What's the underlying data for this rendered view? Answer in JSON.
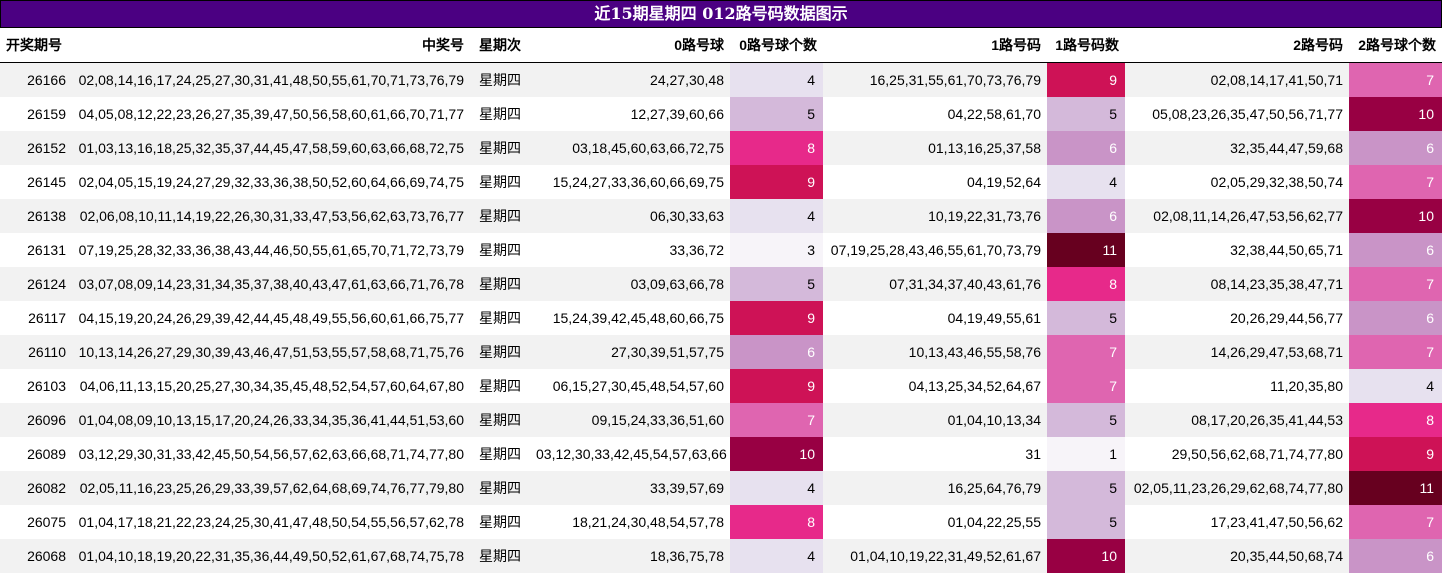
{
  "title": "近15期星期四 012路号码数据图示",
  "headers": [
    "开奖期号",
    "中奖号",
    "星期次",
    "0路号球",
    "0路号球个数",
    "1路号码",
    "1路号码数",
    "2路号码",
    "2路号球个数"
  ],
  "rows": [
    {
      "issue": "26166",
      "numbers": "02,08,14,16,17,24,25,27,30,31,41,48,50,55,61,70,71,73,76,79",
      "weekday": "星期四",
      "r0": "24,27,30,48",
      "c0": 4,
      "r1": "16,25,31,55,61,70,73,76,79",
      "c1": 9,
      "r2": "02,08,14,17,41,50,71",
      "c2": 7
    },
    {
      "issue": "26159",
      "numbers": "04,05,08,12,22,23,26,27,35,39,47,50,56,58,60,61,66,70,71,77",
      "weekday": "星期四",
      "r0": "12,27,39,60,66",
      "c0": 5,
      "r1": "04,22,58,61,70",
      "c1": 5,
      "r2": "05,08,23,26,35,47,50,56,71,77",
      "c2": 10
    },
    {
      "issue": "26152",
      "numbers": "01,03,13,16,18,25,32,35,37,44,45,47,58,59,60,63,66,68,72,75",
      "weekday": "星期四",
      "r0": "03,18,45,60,63,66,72,75",
      "c0": 8,
      "r1": "01,13,16,25,37,58",
      "c1": 6,
      "r2": "32,35,44,47,59,68",
      "c2": 6
    },
    {
      "issue": "26145",
      "numbers": "02,04,05,15,19,24,27,29,32,33,36,38,50,52,60,64,66,69,74,75",
      "weekday": "星期四",
      "r0": "15,24,27,33,36,60,66,69,75",
      "c0": 9,
      "r1": "04,19,52,64",
      "c1": 4,
      "r2": "02,05,29,32,38,50,74",
      "c2": 7
    },
    {
      "issue": "26138",
      "numbers": "02,06,08,10,11,14,19,22,26,30,31,33,47,53,56,62,63,73,76,77",
      "weekday": "星期四",
      "r0": "06,30,33,63",
      "c0": 4,
      "r1": "10,19,22,31,73,76",
      "c1": 6,
      "r2": "02,08,11,14,26,47,53,56,62,77",
      "c2": 10
    },
    {
      "issue": "26131",
      "numbers": "07,19,25,28,32,33,36,38,43,44,46,50,55,61,65,70,71,72,73,79",
      "weekday": "星期四",
      "r0": "33,36,72",
      "c0": 3,
      "r1": "07,19,25,28,43,46,55,61,70,73,79",
      "c1": 11,
      "r2": "32,38,44,50,65,71",
      "c2": 6
    },
    {
      "issue": "26124",
      "numbers": "03,07,08,09,14,23,31,34,35,37,38,40,43,47,61,63,66,71,76,78",
      "weekday": "星期四",
      "r0": "03,09,63,66,78",
      "c0": 5,
      "r1": "07,31,34,37,40,43,61,76",
      "c1": 8,
      "r2": "08,14,23,35,38,47,71",
      "c2": 7
    },
    {
      "issue": "26117",
      "numbers": "04,15,19,20,24,26,29,39,42,44,45,48,49,55,56,60,61,66,75,77",
      "weekday": "星期四",
      "r0": "15,24,39,42,45,48,60,66,75",
      "c0": 9,
      "r1": "04,19,49,55,61",
      "c1": 5,
      "r2": "20,26,29,44,56,77",
      "c2": 6
    },
    {
      "issue": "26110",
      "numbers": "10,13,14,26,27,29,30,39,43,46,47,51,53,55,57,58,68,71,75,76",
      "weekday": "星期四",
      "r0": "27,30,39,51,57,75",
      "c0": 6,
      "r1": "10,13,43,46,55,58,76",
      "c1": 7,
      "r2": "14,26,29,47,53,68,71",
      "c2": 7
    },
    {
      "issue": "26103",
      "numbers": "04,06,11,13,15,20,25,27,30,34,35,45,48,52,54,57,60,64,67,80",
      "weekday": "星期四",
      "r0": "06,15,27,30,45,48,54,57,60",
      "c0": 9,
      "r1": "04,13,25,34,52,64,67",
      "c1": 7,
      "r2": "11,20,35,80",
      "c2": 4
    },
    {
      "issue": "26096",
      "numbers": "01,04,08,09,10,13,15,17,20,24,26,33,34,35,36,41,44,51,53,60",
      "weekday": "星期四",
      "r0": "09,15,24,33,36,51,60",
      "c0": 7,
      "r1": "01,04,10,13,34",
      "c1": 5,
      "r2": "08,17,20,26,35,41,44,53",
      "c2": 8
    },
    {
      "issue": "26089",
      "numbers": "03,12,29,30,31,33,42,45,50,54,56,57,62,63,66,68,71,74,77,80",
      "weekday": "星期四",
      "r0": "03,12,30,33,42,45,54,57,63,66",
      "c0": 10,
      "r1": "31",
      "c1": 1,
      "r2": "29,50,56,62,68,71,74,77,80",
      "c2": 9
    },
    {
      "issue": "26082",
      "numbers": "02,05,11,16,23,25,26,29,33,39,57,62,64,68,69,74,76,77,79,80",
      "weekday": "星期四",
      "r0": "33,39,57,69",
      "c0": 4,
      "r1": "16,25,64,76,79",
      "c1": 5,
      "r2": "02,05,11,23,26,29,62,68,74,77,80",
      "c2": 11
    },
    {
      "issue": "26075",
      "numbers": "01,04,17,18,21,22,23,24,25,30,41,47,48,50,54,55,56,57,62,78",
      "weekday": "星期四",
      "r0": "18,21,24,30,48,54,57,78",
      "c0": 8,
      "r1": "01,04,22,25,55",
      "c1": 5,
      "r2": "17,23,41,47,50,56,62",
      "c2": 7
    },
    {
      "issue": "26068",
      "numbers": "01,04,10,18,19,20,22,31,35,36,44,49,50,52,61,67,68,74,75,78",
      "weekday": "星期四",
      "r0": "18,36,75,78",
      "c0": 4,
      "r1": "01,04,10,19,22,31,49,52,61,67",
      "c1": 10,
      "r2": "20,35,44,50,68,74",
      "c2": 6
    }
  ],
  "heat_colors": {
    "1": "#f7f4f9",
    "3": "#f7f4f9",
    "4": "#e7e1ef",
    "5": "#d4b9da",
    "6": "#c994c7",
    "7": "#df65b0",
    "8": "#e7298a",
    "9": "#ce1256",
    "10": "#980043",
    "11": "#67001f"
  }
}
